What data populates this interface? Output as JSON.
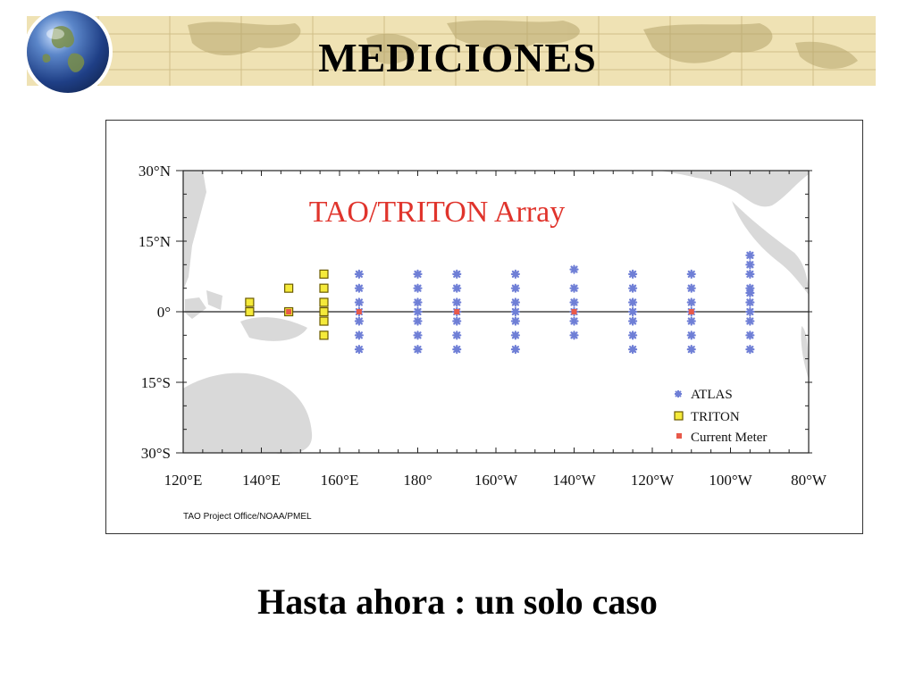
{
  "slide": {
    "title": "MEDICIONES",
    "caption": "Hasta ahora : un solo caso"
  },
  "colors": {
    "banner": "#efe2b4",
    "atlas": "#6f7fd6",
    "triton_fill": "#f5ea3a",
    "triton_edge": "#6b5b00",
    "current_meter": "#e8594a",
    "land": "#d9d9d9",
    "map_title": "#e0342c"
  },
  "icons": {
    "logo": "globe-icon"
  },
  "map": {
    "title": "TAO/TRITON Array",
    "credit": "TAO Project Office/NOAA/PMEL",
    "lon_ticks": [
      "120°E",
      "140°E",
      "160°E",
      "180°",
      "160°W",
      "140°W",
      "120°W",
      "100°W",
      "80°W"
    ],
    "lat_ticks": [
      "30°N",
      "15°N",
      "0°",
      "15°S",
      "30°S"
    ],
    "legend": [
      {
        "key": "atlas",
        "label": "ATLAS"
      },
      {
        "key": "triton",
        "label": "TRITON"
      },
      {
        "key": "current_meter",
        "label": "Current Meter"
      }
    ],
    "extent": {
      "lon_min": 120,
      "lon_max": 280,
      "lat_min": -30,
      "lat_max": 30
    },
    "atlas_columns": [
      {
        "lon": 165,
        "lats": [
          8,
          5,
          2,
          0,
          -2,
          -5,
          -8
        ]
      },
      {
        "lon": 180,
        "lats": [
          8,
          5,
          2,
          0,
          -2,
          -5,
          -8
        ]
      },
      {
        "lon": 190,
        "lats": [
          8,
          5,
          2,
          0,
          -2,
          -5,
          -8
        ]
      },
      {
        "lon": 205,
        "lats": [
          8,
          5,
          2,
          0,
          -2,
          -5,
          -8
        ]
      },
      {
        "lon": 220,
        "lats": [
          9,
          5,
          2,
          0,
          -2,
          -5
        ]
      },
      {
        "lon": 235,
        "lats": [
          8,
          5,
          2,
          0,
          -2,
          -5,
          -8
        ]
      },
      {
        "lon": 250,
        "lats": [
          8,
          5,
          2,
          0,
          -2,
          -5,
          -8
        ]
      },
      {
        "lon": 265,
        "lats": [
          12,
          10,
          8,
          5,
          4,
          2,
          0,
          -2,
          -5,
          -8
        ]
      }
    ],
    "triton_moorings": [
      {
        "lon": 137,
        "lat": 2
      },
      {
        "lon": 137,
        "lat": 0
      },
      {
        "lon": 147,
        "lat": 5
      },
      {
        "lon": 147,
        "lat": 0
      },
      {
        "lon": 156,
        "lat": 8
      },
      {
        "lon": 156,
        "lat": 5
      },
      {
        "lon": 156,
        "lat": 2
      },
      {
        "lon": 156,
        "lat": 0
      },
      {
        "lon": 156,
        "lat": -2
      },
      {
        "lon": 156,
        "lat": -5
      }
    ],
    "current_meters": [
      {
        "lon": 147,
        "lat": 0
      },
      {
        "lon": 165,
        "lat": 0
      },
      {
        "lon": 190,
        "lat": 0
      },
      {
        "lon": 220,
        "lat": 0
      },
      {
        "lon": 250,
        "lat": 0
      }
    ]
  }
}
